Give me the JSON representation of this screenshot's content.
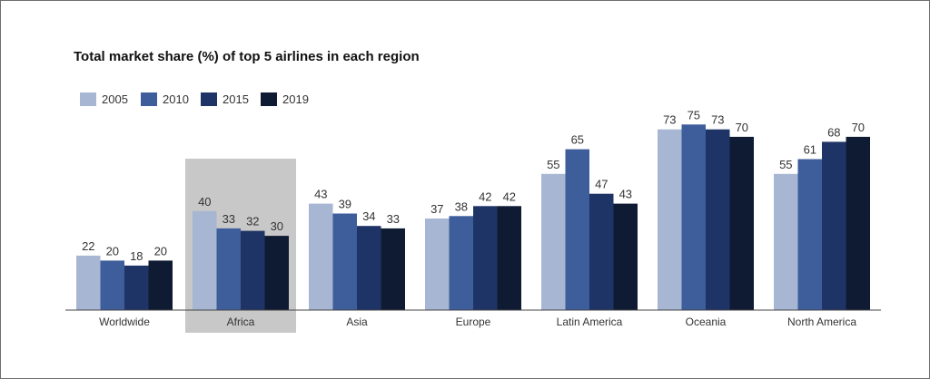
{
  "chart_data": {
    "type": "bar",
    "title": "Total market share (%) of top 5 airlines in each region",
    "categories": [
      "Worldwide",
      "Africa",
      "Asia",
      "Europe",
      "Latin America",
      "Oceania",
      "North America"
    ],
    "series": [
      {
        "name": "2005",
        "values": [
          22,
          40,
          43,
          37,
          55,
          73,
          55
        ],
        "color": "#a7b6d2"
      },
      {
        "name": "2010",
        "values": [
          20,
          33,
          39,
          38,
          65,
          75,
          61
        ],
        "color": "#3d5d9b"
      },
      {
        "name": "2015",
        "values": [
          18,
          32,
          34,
          42,
          47,
          73,
          68
        ],
        "color": "#1f3466"
      },
      {
        "name": "2019",
        "values": [
          20,
          30,
          33,
          42,
          43,
          70,
          70
        ],
        "color": "#0f1a33"
      }
    ],
    "highlighted_category": "Africa",
    "highlight_color": "#c8c8c8",
    "ylim": [
      0,
      80
    ],
    "grid": false,
    "legend_position": "top-left",
    "data_labels": true
  }
}
